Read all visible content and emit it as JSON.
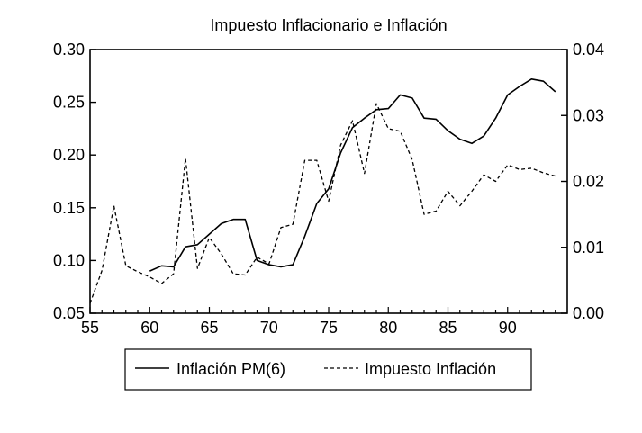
{
  "chart_data": {
    "type": "line",
    "title": "Impuesto Inflacionario e Inflación",
    "xlim": [
      55,
      95
    ],
    "x_ticks": [
      "55",
      "60",
      "65",
      "70",
      "75",
      "80",
      "85",
      "90"
    ],
    "y_left": {
      "lim": [
        0.05,
        0.3
      ],
      "ticks": [
        "0.05",
        "0.10",
        "0.15",
        "0.20",
        "0.25",
        "0.30"
      ]
    },
    "y_right": {
      "lim": [
        0.0,
        0.04
      ],
      "ticks": [
        "0.00",
        "0.01",
        "0.02",
        "0.03",
        "0.04"
      ]
    },
    "grid": false,
    "legend_position": "bottom",
    "series": [
      {
        "name": "Inflación PM(6)",
        "axis": "left",
        "style": "solid",
        "color": "#000000",
        "x": [
          60,
          61,
          62,
          63,
          64,
          65,
          66,
          67,
          68,
          69,
          70,
          71,
          72,
          73,
          74,
          75,
          76,
          77,
          78,
          79,
          80,
          81,
          82,
          83,
          84,
          85,
          86,
          87,
          88,
          89,
          90,
          91,
          92,
          93,
          94
        ],
        "values": [
          0.09,
          0.095,
          0.094,
          0.113,
          0.115,
          0.125,
          0.135,
          0.139,
          0.139,
          0.1,
          0.096,
          0.094,
          0.096,
          0.123,
          0.154,
          0.168,
          0.202,
          0.226,
          0.235,
          0.243,
          0.244,
          0.257,
          0.254,
          0.235,
          0.234,
          0.223,
          0.215,
          0.211,
          0.218,
          0.235,
          0.257,
          0.265,
          0.272,
          0.27,
          0.26
        ]
      },
      {
        "name": "Impuesto Inflación",
        "axis": "right",
        "style": "dashed",
        "color": "#000000",
        "x": [
          55,
          56,
          57,
          58,
          59,
          60,
          61,
          62,
          63,
          64,
          65,
          66,
          67,
          68,
          69,
          70,
          71,
          72,
          73,
          74,
          75,
          76,
          77,
          78,
          79,
          80,
          81,
          82,
          83,
          84,
          85,
          86,
          87,
          88,
          89,
          90,
          91,
          92,
          93,
          94
        ],
        "values": [
          0.0015,
          0.0065,
          0.0163,
          0.0072,
          0.0063,
          0.0055,
          0.0045,
          0.006,
          0.0235,
          0.0068,
          0.0115,
          0.009,
          0.006,
          0.0058,
          0.0085,
          0.0075,
          0.013,
          0.0135,
          0.0232,
          0.0232,
          0.017,
          0.0255,
          0.0292,
          0.0212,
          0.0318,
          0.028,
          0.0276,
          0.0233,
          0.015,
          0.0155,
          0.0185,
          0.0163,
          0.0185,
          0.021,
          0.02,
          0.0225,
          0.0218,
          0.022,
          0.0213,
          0.0208
        ]
      }
    ]
  }
}
